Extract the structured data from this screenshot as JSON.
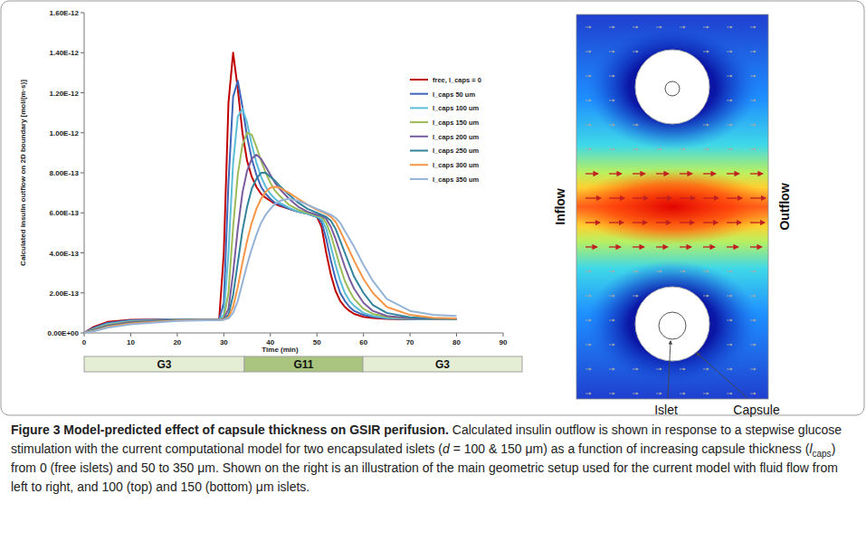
{
  "chart_data": {
    "type": "line",
    "x_label": "Time (min)",
    "y_label": "Calculated insulin outflow on 2D boundary [mol/(m·s)]",
    "xlim": [
      0,
      90
    ],
    "xticks": [
      0,
      10,
      20,
      30,
      40,
      50,
      60,
      70,
      80,
      90
    ],
    "ylim": [
      0,
      1.6e-12
    ],
    "yticks": [
      {
        "value": 0,
        "label": "0.00E+00"
      },
      {
        "value": 2e-13,
        "label": "2.00E-13"
      },
      {
        "value": 4e-13,
        "label": "4.00E-13"
      },
      {
        "value": 6e-13,
        "label": "6.00E-13"
      },
      {
        "value": 8e-13,
        "label": "8.00E-13"
      },
      {
        "value": 1e-12,
        "label": "1.00E-12"
      },
      {
        "value": 1.2e-12,
        "label": "1.20E-12"
      },
      {
        "value": 1.4e-12,
        "label": "1.40E-12"
      },
      {
        "value": 1.6e-12,
        "label": "1.60E-12"
      }
    ],
    "grid": false,
    "legend": "upper right",
    "x": [
      0,
      2,
      5,
      10,
      20,
      29,
      30,
      31,
      32,
      33,
      34,
      35,
      36,
      37,
      38,
      39,
      40,
      41,
      42,
      44,
      46,
      48,
      50,
      51,
      52,
      53,
      54,
      55,
      56,
      57,
      58,
      60,
      62,
      65,
      70,
      75,
      80
    ],
    "series": [
      {
        "name": "free, l_caps = 0",
        "color": "#c00000",
        "values": [
          0,
          3e-14,
          5.5e-14,
          6.5e-14,
          6.8e-14,
          6.8e-14,
          4e-13,
          1.15e-12,
          1.4e-12,
          1.22e-12,
          1e-12,
          8.6e-13,
          7.8e-13,
          7.3e-13,
          6.95e-13,
          6.75e-13,
          6.6e-13,
          6.45e-13,
          6.35e-13,
          6.2e-13,
          6.05e-13,
          5.95e-13,
          5.8e-13,
          5.3e-13,
          4e-13,
          2.9e-13,
          2.1e-13,
          1.6e-13,
          1.3e-13,
          1.1e-13,
          9.5e-14,
          8e-14,
          7.5e-14,
          7e-14,
          6.8e-14,
          6.8e-14,
          6.8e-14
        ]
      },
      {
        "name": "l_caps 50 um",
        "color": "#3f66b8",
        "values": [
          0,
          2.5e-14,
          5e-14,
          6.3e-14,
          6.8e-14,
          6.8e-14,
          1.5e-13,
          7.5e-13,
          1.18e-12,
          1.26e-12,
          1.13e-12,
          9.8e-13,
          8.7e-13,
          7.9e-13,
          7.3e-13,
          6.95e-13,
          6.7e-13,
          6.5e-13,
          6.4e-13,
          6.2e-13,
          6.05e-13,
          5.95e-13,
          5.8e-13,
          5.55e-13,
          4.7e-13,
          3.6e-13,
          2.7e-13,
          2e-13,
          1.6e-13,
          1.3e-13,
          1.1e-13,
          9e-14,
          8e-14,
          7.2e-14,
          6.9e-14,
          6.8e-14,
          6.8e-14
        ]
      },
      {
        "name": "l_caps 100 um",
        "color": "#5bbdd6",
        "values": [
          0,
          2e-14,
          4.5e-14,
          6e-14,
          6.7e-14,
          6.8e-14,
          9e-14,
          4e-13,
          8.5e-13,
          1.08e-12,
          1.12e-12,
          1.05e-12,
          9.4e-13,
          8.5e-13,
          7.8e-13,
          7.3e-13,
          6.95e-13,
          6.7e-13,
          6.5e-13,
          6.25e-13,
          6.05e-13,
          5.95e-13,
          5.8e-13,
          5.7e-13,
          5.2e-13,
          4.3e-13,
          3.4e-13,
          2.6e-13,
          2e-13,
          1.6e-13,
          1.35e-13,
          1e-13,
          8.5e-14,
          7.5e-14,
          7e-14,
          6.8e-14,
          6.8e-14
        ]
      },
      {
        "name": "l_caps 150 um",
        "color": "#9bbb59",
        "values": [
          0,
          1.8e-14,
          4e-14,
          5.7e-14,
          6.6e-14,
          6.7e-14,
          7.5e-14,
          2e-13,
          5.3e-13,
          7.9e-13,
          9.4e-13,
          1e-12,
          9.9e-13,
          9.3e-13,
          8.6e-13,
          8e-13,
          7.5e-13,
          7.1e-13,
          6.85e-13,
          6.4e-13,
          6.15e-13,
          6e-13,
          5.85e-13,
          5.8e-13,
          5.5e-13,
          4.9e-13,
          4.1e-13,
          3.3e-13,
          2.6e-13,
          2.1e-13,
          1.7e-13,
          1.2e-13,
          9.5e-14,
          8e-14,
          7.2e-14,
          7e-14,
          6.9e-14
        ]
      },
      {
        "name": "l_caps 200 um",
        "color": "#7a5c9e",
        "values": [
          0,
          1.5e-14,
          3.6e-14,
          5.4e-14,
          6.5e-14,
          6.7e-14,
          7e-14,
          1.2e-13,
          3e-13,
          5.2e-13,
          7e-13,
          8.1e-13,
          8.7e-13,
          8.9e-13,
          8.7e-13,
          8.3e-13,
          7.9e-13,
          7.5e-13,
          7.2e-13,
          6.7e-13,
          6.3e-13,
          6.05e-13,
          5.9e-13,
          5.85e-13,
          5.7e-13,
          5.3e-13,
          4.7e-13,
          4e-13,
          3.3e-13,
          2.7e-13,
          2.2e-13,
          1.5e-13,
          1.1e-13,
          8.5e-14,
          7.4e-14,
          7e-14,
          7e-14
        ]
      },
      {
        "name": "l_caps 250 um",
        "color": "#31849b",
        "values": [
          0,
          1.3e-14,
          3.3e-14,
          5e-14,
          6.4e-14,
          6.6e-14,
          6.8e-14,
          9e-14,
          1.9e-13,
          3.5e-13,
          5.1e-13,
          6.3e-13,
          7.2e-13,
          7.7e-13,
          8e-13,
          8e-13,
          7.8e-13,
          7.6e-13,
          7.35e-13,
          6.9e-13,
          6.5e-13,
          6.2e-13,
          6e-13,
          5.9e-13,
          5.8e-13,
          5.6e-13,
          5.2e-13,
          4.6e-13,
          4e-13,
          3.4e-13,
          2.8e-13,
          2e-13,
          1.4e-13,
          1e-13,
          7.8e-14,
          7.2e-14,
          7e-14
        ]
      },
      {
        "name": "l_caps 300 um",
        "color": "#f79646",
        "values": [
          0,
          1e-14,
          3e-14,
          4.7e-14,
          6.2e-14,
          6.5e-14,
          6.7e-14,
          7.8e-14,
          1.3e-13,
          2.3e-13,
          3.5e-13,
          4.6e-13,
          5.5e-13,
          6.2e-13,
          6.7e-13,
          7.05e-13,
          7.25e-13,
          7.3e-13,
          7.25e-13,
          7e-13,
          6.7e-13,
          6.4e-13,
          6.15e-13,
          6.05e-13,
          5.95e-13,
          5.8e-13,
          5.55e-13,
          5.1e-13,
          4.6e-13,
          4.1e-13,
          3.6e-13,
          2.7e-13,
          2e-13,
          1.3e-13,
          9e-14,
          7.6e-14,
          7.2e-14
        ]
      },
      {
        "name": "l_caps 350 um",
        "color": "#95b3d7",
        "values": [
          0,
          8e-15,
          2.6e-14,
          4.3e-14,
          6e-14,
          6.4e-14,
          6.6e-14,
          7.2e-14,
          1e-13,
          1.6e-13,
          2.5e-13,
          3.4e-13,
          4.2e-13,
          4.9e-13,
          5.5e-13,
          5.9e-13,
          6.2e-13,
          6.45e-13,
          6.6e-13,
          6.7e-13,
          6.6e-13,
          6.4e-13,
          6.2e-13,
          6.1e-13,
          6e-13,
          5.9e-13,
          5.75e-13,
          5.5e-13,
          5.1e-13,
          4.7e-13,
          4.3e-13,
          3.4e-13,
          2.6e-13,
          1.7e-13,
          1.1e-13,
          9e-14,
          8.5e-14
        ]
      }
    ]
  },
  "glucose_protocol": [
    "G3",
    "G11",
    "G3"
  ],
  "diagram": {
    "inflow": "Inflow",
    "outflow": "Outflow",
    "islet": "Islet",
    "capsule": "Capsule"
  },
  "caption": {
    "runs": [
      {
        "text": "Figure 3 Model-predicted effect of capsule thickness on GSIR perifusion.",
        "bold": true
      },
      {
        "text": " Calculated insulin outflow is shown in response to a stepwise glucose stimulation with the current computational model for two encapsulated islets ("
      },
      {
        "text": "d",
        "italic": true
      },
      {
        "text": " = 100 & 150 μm) as a function of increasing capsule thickness ("
      },
      {
        "text": "l",
        "italic": true
      },
      {
        "text": "caps",
        "sub": true
      },
      {
        "text": ") from 0 (free islets) and 50 to 350 μm. Shown on the right is an illustration of the main geometric setup used for the current model with fluid flow from left to right, and 100 (top) and 150 (bottom) μm islets."
      }
    ]
  }
}
